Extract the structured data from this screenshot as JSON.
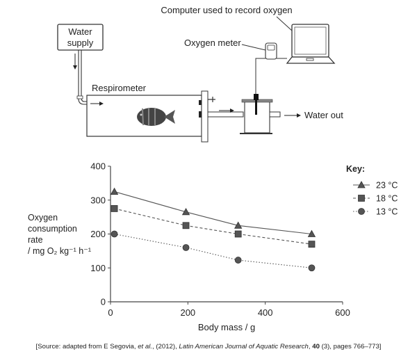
{
  "diagram": {
    "water_supply_line1": "Water",
    "water_supply_line2": "supply",
    "respirometer": "Respirometer",
    "oxygen_meter": "Oxygen meter",
    "computer": "Computer used to record oxygen",
    "water_out": "Water out"
  },
  "chart_data": {
    "type": "line",
    "xlabel": "Body mass / g",
    "ylabel_lines": [
      "Oxygen",
      "consumption",
      "rate"
    ],
    "ylabel_units": "/ mg O₂ kg⁻¹ h⁻¹",
    "xlim": [
      0,
      600
    ],
    "ylim": [
      0,
      400
    ],
    "xticks": [
      0,
      200,
      400,
      600
    ],
    "yticks": [
      0,
      100,
      200,
      300,
      400
    ],
    "grid": false,
    "legend_title": "Key:",
    "legend_position": "right",
    "x": [
      10,
      195,
      330,
      520
    ],
    "series": [
      {
        "name": "23 °C",
        "marker": "triangle",
        "line": "solid",
        "values": [
          325,
          265,
          225,
          200
        ]
      },
      {
        "name": "18 °C",
        "marker": "square",
        "line": "dashed",
        "values": [
          275,
          225,
          200,
          170
        ]
      },
      {
        "name": "13 °C",
        "marker": "circle",
        "line": "dotted",
        "values": [
          200,
          160,
          123,
          100
        ]
      }
    ]
  },
  "source": {
    "prefix": "[Source: adapted from E Segovia, ",
    "etal": "et al.",
    "middle": ", (2012), ",
    "journal": "Latin American Journal of Aquatic Research",
    "sep": ", ",
    "volume": "40",
    "suffix": " (3), pages 766–773]"
  }
}
